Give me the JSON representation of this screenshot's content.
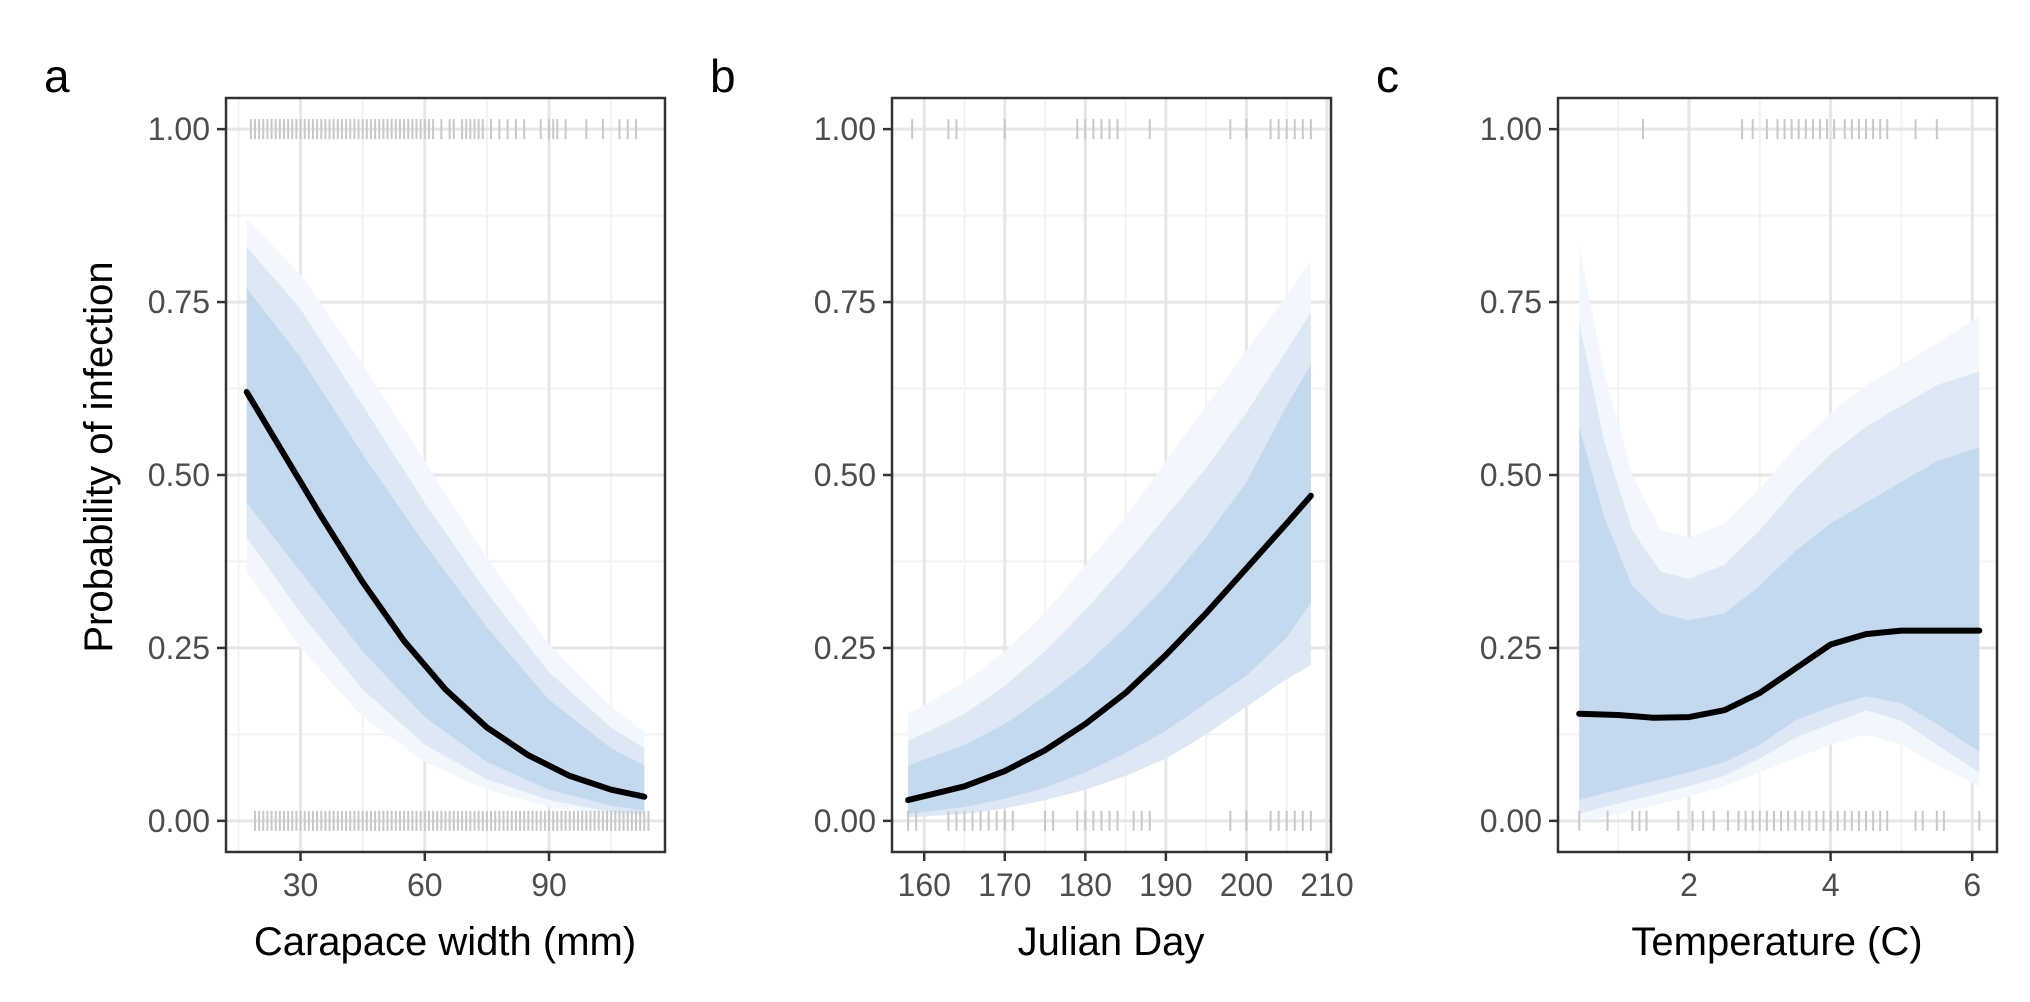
{
  "chart_data": [
    {
      "type": "line",
      "panel_label": "a",
      "xlabel": "Carapace width (mm)",
      "ylabel": "Probability of infection",
      "xlim": [
        12,
        118
      ],
      "ylim": [
        -0.045,
        1.045
      ],
      "xticks": [
        30,
        60,
        90
      ],
      "xtick_labels": [
        "30",
        "60",
        "90"
      ],
      "yticks": [
        0,
        0.25,
        0.5,
        0.75,
        1.0
      ],
      "ytick_labels": [
        "0.00",
        "0.25",
        "0.50",
        "0.75",
        "1.00"
      ],
      "grid": true,
      "series": [
        {
          "x": [
            17,
            25,
            35,
            45,
            55,
            65,
            75,
            85,
            95,
            105,
            113
          ],
          "y": [
            0.62,
            0.54,
            0.44,
            0.345,
            0.26,
            0.19,
            0.135,
            0.095,
            0.065,
            0.045,
            0.035
          ]
        }
      ],
      "bands": [
        {
          "level": "outer",
          "x": [
            17,
            30,
            45,
            60,
            75,
            90,
            105,
            113
          ],
          "upper": [
            0.87,
            0.79,
            0.66,
            0.52,
            0.38,
            0.255,
            0.165,
            0.13
          ],
          "lower": [
            0.36,
            0.25,
            0.15,
            0.085,
            0.045,
            0.02,
            0.008,
            0.005
          ]
        },
        {
          "level": "middle",
          "x": [
            17,
            30,
            45,
            60,
            75,
            90,
            105,
            113
          ],
          "upper": [
            0.83,
            0.74,
            0.6,
            0.46,
            0.33,
            0.215,
            0.135,
            0.105
          ],
          "lower": [
            0.41,
            0.3,
            0.19,
            0.11,
            0.06,
            0.03,
            0.013,
            0.009
          ]
        },
        {
          "level": "inner",
          "x": [
            17,
            30,
            45,
            60,
            75,
            90,
            105,
            113
          ],
          "upper": [
            0.77,
            0.67,
            0.53,
            0.4,
            0.28,
            0.175,
            0.105,
            0.08
          ],
          "lower": [
            0.46,
            0.36,
            0.245,
            0.15,
            0.085,
            0.045,
            0.022,
            0.015
          ]
        }
      ],
      "rug_top": [
        18,
        19,
        20,
        21,
        22,
        23,
        24,
        25,
        26,
        27,
        28,
        29,
        30,
        31,
        32,
        33,
        34,
        35,
        36,
        37,
        38,
        39,
        40,
        41,
        42,
        43,
        44,
        45,
        46,
        47,
        48,
        49,
        50,
        51,
        52,
        53,
        54,
        55,
        56,
        57,
        58,
        59,
        60,
        61,
        62,
        64,
        66,
        67,
        69,
        70,
        71,
        72,
        73,
        74,
        76,
        78,
        80,
        82,
        84,
        88,
        90,
        91,
        92,
        94,
        99,
        103,
        107,
        109,
        111
      ],
      "rug_bottom": [
        19,
        20,
        21,
        22,
        23,
        24,
        25,
        26,
        27,
        28,
        29,
        30,
        31,
        32,
        33,
        34,
        35,
        36,
        37,
        38,
        39,
        40,
        41,
        42,
        43,
        44,
        45,
        46,
        47,
        48,
        49,
        50,
        51,
        52,
        53,
        54,
        55,
        56,
        57,
        58,
        59,
        60,
        61,
        62,
        63,
        64,
        65,
        66,
        67,
        68,
        69,
        70,
        71,
        72,
        73,
        74,
        75,
        76,
        77,
        78,
        79,
        80,
        81,
        82,
        83,
        84,
        85,
        86,
        87,
        88,
        89,
        90,
        91,
        92,
        93,
        94,
        95,
        96,
        97,
        98,
        99,
        100,
        101,
        102,
        103,
        104,
        105,
        106,
        107,
        108,
        109,
        110,
        111,
        112,
        113,
        114
      ]
    },
    {
      "type": "line",
      "panel_label": "b",
      "xlabel": "Julian Day",
      "ylabel": "",
      "xlim": [
        156,
        210.5
      ],
      "ylim": [
        -0.045,
        1.045
      ],
      "xticks": [
        160,
        170,
        180,
        190,
        200,
        210
      ],
      "xtick_labels": [
        "160",
        "170",
        "180",
        "190",
        "200",
        "210"
      ],
      "yticks": [
        0,
        0.25,
        0.5,
        0.75,
        1.0
      ],
      "ytick_labels": [
        "0.00",
        "0.25",
        "0.50",
        "0.75",
        "1.00"
      ],
      "grid": true,
      "series": [
        {
          "x": [
            158,
            165,
            170,
            175,
            180,
            185,
            190,
            195,
            200,
            205,
            208
          ],
          "y": [
            0.03,
            0.05,
            0.072,
            0.102,
            0.14,
            0.185,
            0.24,
            0.3,
            0.365,
            0.43,
            0.47
          ]
        }
      ],
      "bands": [
        {
          "level": "outer",
          "x": [
            158,
            165,
            170,
            175,
            180,
            185,
            190,
            195,
            200,
            205,
            208
          ],
          "upper": [
            0.155,
            0.2,
            0.245,
            0.3,
            0.37,
            0.44,
            0.52,
            0.6,
            0.68,
            0.76,
            0.81
          ],
          "lower": [
            0.005,
            0.01,
            0.018,
            0.03,
            0.045,
            0.065,
            0.09,
            0.125,
            0.165,
            0.205,
            0.225
          ]
        },
        {
          "level": "middle",
          "x": [
            158,
            165,
            170,
            175,
            180,
            185,
            190,
            195,
            200,
            205,
            208
          ],
          "upper": [
            0.115,
            0.155,
            0.195,
            0.245,
            0.305,
            0.37,
            0.44,
            0.51,
            0.59,
            0.68,
            0.735
          ]
        },
        {
          "level": "inner",
          "x": [
            158,
            165,
            170,
            175,
            180,
            185,
            190,
            195,
            200,
            205,
            208
          ],
          "upper": [
            0.08,
            0.11,
            0.14,
            0.18,
            0.225,
            0.28,
            0.34,
            0.41,
            0.49,
            0.6,
            0.66
          ],
          "lower": [
            0.01,
            0.02,
            0.032,
            0.048,
            0.07,
            0.098,
            0.13,
            0.17,
            0.21,
            0.265,
            0.315
          ]
        }
      ],
      "rug_top": [
        158.5,
        163,
        164,
        170,
        179,
        180,
        181,
        182,
        183,
        184,
        188,
        198,
        200,
        203,
        204,
        205,
        206,
        207,
        208
      ],
      "rug_bottom": [
        158,
        159,
        163,
        164,
        165,
        166,
        167,
        168,
        169,
        170,
        171,
        175,
        176,
        179,
        180,
        181,
        182,
        183,
        184,
        186,
        187,
        188,
        198,
        200,
        203,
        204,
        205,
        206,
        207,
        208
      ]
    },
    {
      "type": "line",
      "panel_label": "c",
      "xlabel": "Temperature (C)",
      "ylabel": "",
      "xlim": [
        0.15,
        6.35
      ],
      "ylim": [
        -0.045,
        1.045
      ],
      "xticks": [
        2,
        4,
        6
      ],
      "xtick_labels": [
        "2",
        "4",
        "6"
      ],
      "yticks": [
        0,
        0.25,
        0.5,
        0.75,
        1.0
      ],
      "ytick_labels": [
        "0.00",
        "0.25",
        "0.50",
        "0.75",
        "1.00"
      ],
      "grid": true,
      "series": [
        {
          "x": [
            0.45,
            1.0,
            1.5,
            2.0,
            2.5,
            3.0,
            3.5,
            4.0,
            4.5,
            5.0,
            5.5,
            6.1
          ],
          "y": [
            0.155,
            0.153,
            0.149,
            0.15,
            0.16,
            0.185,
            0.22,
            0.255,
            0.27,
            0.275,
            0.275,
            0.275
          ]
        }
      ],
      "bands": [
        {
          "level": "outer",
          "x": [
            0.45,
            0.8,
            1.2,
            1.6,
            2.0,
            2.5,
            3.0,
            3.5,
            4.0,
            4.5,
            5.0,
            5.5,
            6.1
          ],
          "upper": [
            0.83,
            0.65,
            0.5,
            0.42,
            0.41,
            0.43,
            0.48,
            0.54,
            0.59,
            0.63,
            0.66,
            0.69,
            0.73
          ],
          "lower": [
            0.0,
            0.005,
            0.015,
            0.025,
            0.035,
            0.05,
            0.07,
            0.09,
            0.11,
            0.125,
            0.11,
            0.08,
            0.05
          ]
        },
        {
          "level": "middle",
          "x": [
            0.45,
            0.8,
            1.2,
            1.6,
            2.0,
            2.5,
            3.0,
            3.5,
            4.0,
            4.5,
            5.0,
            5.5,
            6.1
          ],
          "upper": [
            0.72,
            0.55,
            0.42,
            0.36,
            0.35,
            0.37,
            0.42,
            0.48,
            0.53,
            0.57,
            0.6,
            0.63,
            0.65
          ],
          "lower": [
            0.01,
            0.02,
            0.03,
            0.04,
            0.05,
            0.065,
            0.09,
            0.12,
            0.14,
            0.16,
            0.145,
            0.11,
            0.07
          ]
        },
        {
          "level": "inner",
          "x": [
            0.45,
            0.8,
            1.2,
            1.6,
            2.0,
            2.5,
            3.0,
            3.5,
            4.0,
            4.5,
            5.0,
            5.5,
            6.1
          ],
          "upper": [
            0.57,
            0.44,
            0.34,
            0.3,
            0.29,
            0.3,
            0.34,
            0.39,
            0.43,
            0.46,
            0.49,
            0.52,
            0.54
          ],
          "lower": [
            0.03,
            0.04,
            0.05,
            0.06,
            0.07,
            0.085,
            0.11,
            0.145,
            0.165,
            0.18,
            0.17,
            0.14,
            0.1
          ]
        }
      ],
      "rug_top": [
        1.35,
        2.75,
        2.9,
        3.1,
        3.25,
        3.35,
        3.45,
        3.55,
        3.65,
        3.75,
        3.85,
        3.95,
        4.05,
        4.2,
        4.3,
        4.4,
        4.5,
        4.6,
        4.7,
        4.8,
        5.2,
        5.5
      ],
      "rug_bottom": [
        0.45,
        0.85,
        1.2,
        1.3,
        1.4,
        1.85,
        2.05,
        2.2,
        2.35,
        2.55,
        2.7,
        2.8,
        2.9,
        3.0,
        3.1,
        3.2,
        3.3,
        3.4,
        3.5,
        3.6,
        3.7,
        3.8,
        3.9,
        4.0,
        4.1,
        4.2,
        4.3,
        4.4,
        4.5,
        4.6,
        4.7,
        4.8,
        5.2,
        5.3,
        5.5,
        5.6,
        6.1
      ]
    }
  ],
  "colors": {
    "band_outer": "#f2f7fd",
    "band_middle": "#dde8f5",
    "band_inner": "#c5d9ee",
    "line": "#000000",
    "rug": "#c8c8c8",
    "grid_major": "#e6e6e6",
    "grid_minor": "#f2f2f2",
    "frame": "#333333"
  }
}
